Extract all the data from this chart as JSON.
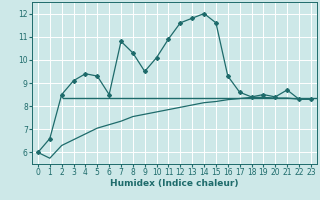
{
  "xlabel": "Humidex (Indice chaleur)",
  "background_color": "#cde8e8",
  "grid_color": "#ffffff",
  "line_color": "#1e6b6b",
  "xlim": [
    -0.5,
    23.5
  ],
  "ylim": [
    5.5,
    12.5
  ],
  "xticks": [
    0,
    1,
    2,
    3,
    4,
    5,
    6,
    7,
    8,
    9,
    10,
    11,
    12,
    13,
    14,
    15,
    16,
    17,
    18,
    19,
    20,
    21,
    22,
    23
  ],
  "yticks": [
    6,
    7,
    8,
    9,
    10,
    11,
    12
  ],
  "curve1_x": [
    0,
    1,
    2,
    3,
    4,
    5,
    6,
    7,
    8,
    9,
    10,
    11,
    12,
    13,
    14,
    15,
    16,
    17,
    18,
    19,
    20,
    21,
    22,
    23
  ],
  "curve1_y": [
    6.0,
    6.6,
    8.5,
    9.1,
    9.4,
    9.3,
    8.5,
    10.8,
    10.3,
    9.5,
    10.1,
    10.9,
    11.6,
    11.8,
    12.0,
    11.6,
    9.3,
    8.6,
    8.4,
    8.5,
    8.4,
    8.7,
    8.3,
    8.3
  ],
  "curve2_x": [
    0,
    1,
    2,
    3,
    4,
    5,
    6,
    7,
    8,
    9,
    10,
    11,
    12,
    13,
    14,
    15,
    16,
    17,
    18,
    19,
    20,
    21,
    22,
    23
  ],
  "curve2_y": [
    6.0,
    5.75,
    6.3,
    6.55,
    6.8,
    7.05,
    7.2,
    7.35,
    7.55,
    7.65,
    7.75,
    7.85,
    7.95,
    8.05,
    8.15,
    8.2,
    8.28,
    8.33,
    8.38,
    8.38,
    8.35,
    8.35,
    8.3,
    8.3
  ],
  "hline_y": 8.35,
  "hline_xstart": 2.0,
  "hline_xend": 23.5
}
